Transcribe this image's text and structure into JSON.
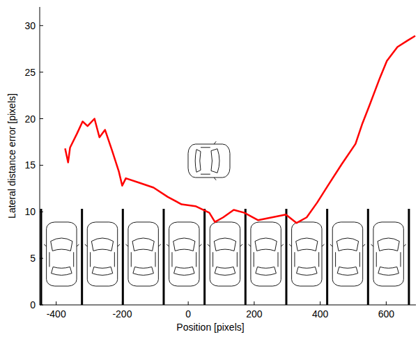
{
  "chart_data": {
    "type": "line",
    "x_label": "Position [pixels]",
    "y_label": "Lateral distance error [pixels]",
    "x": [
      -373,
      -364,
      -358,
      -337,
      -320,
      -305,
      -284,
      -269,
      -252,
      -231,
      -210,
      -200,
      -189,
      -147,
      -105,
      -62,
      -20,
      22,
      64,
      81,
      106,
      138,
      170,
      212,
      254,
      296,
      328,
      359,
      391,
      423,
      465,
      507,
      528,
      549,
      581,
      602,
      634,
      665,
      688
    ],
    "values": [
      16.8,
      15.3,
      16.9,
      18.4,
      19.7,
      19.2,
      20.0,
      18.0,
      18.8,
      16.6,
      14.3,
      12.8,
      13.6,
      13.1,
      12.6,
      11.6,
      10.8,
      10.6,
      9.9,
      8.9,
      9.4,
      10.2,
      9.9,
      9.1,
      9.4,
      9.7,
      8.8,
      9.4,
      11.0,
      12.8,
      15.1,
      17.3,
      19.5,
      21.4,
      24.4,
      26.2,
      27.7,
      28.4,
      28.9
    ],
    "color": "#ff0000",
    "xlim": [
      -450,
      690
    ],
    "xticks": [
      -400,
      -200,
      0,
      200,
      400,
      600
    ],
    "ylim": [
      0,
      32
    ],
    "yticks": [
      0,
      5,
      10,
      15,
      20,
      25,
      30
    ],
    "grid": false
  }
}
